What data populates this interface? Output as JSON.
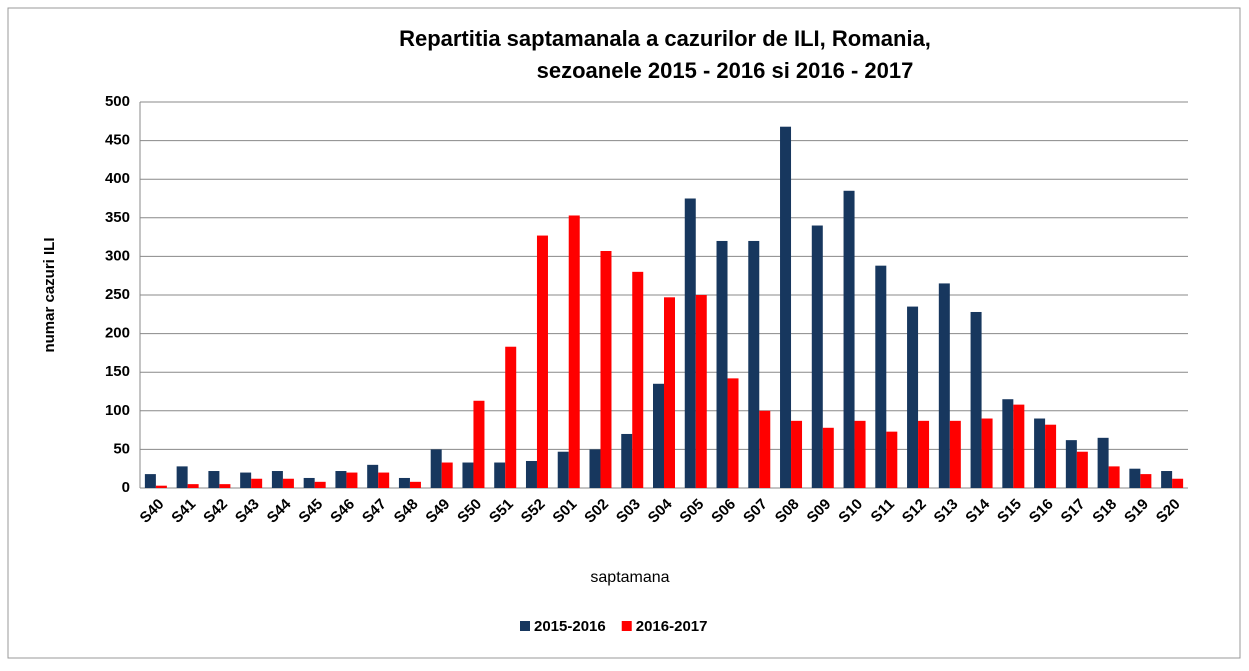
{
  "chart_data": {
    "type": "bar",
    "title": [
      "Repartitia saptamanala a cazurilor de ILI, Romania,",
      "sezoanele 2015 - 2016 si 2016 - 2017"
    ],
    "xlabel": "saptamana",
    "ylabel": "numar cazuri ILI",
    "categories": [
      "S40",
      "S41",
      "S42",
      "S43",
      "S44",
      "S45",
      "S46",
      "S47",
      "S48",
      "S49",
      "S50",
      "S51",
      "S52",
      "S01",
      "S02",
      "S03",
      "S04",
      "S05",
      "S06",
      "S07",
      "S08",
      "S09",
      "S10",
      "S11",
      "S12",
      "S13",
      "S14",
      "S15",
      "S16",
      "S17",
      "S18",
      "S19",
      "S20"
    ],
    "series": [
      {
        "name": "2015-2016",
        "color": "#17375e",
        "values": [
          18,
          28,
          22,
          20,
          22,
          13,
          22,
          30,
          13,
          50,
          33,
          33,
          35,
          47,
          50,
          70,
          135,
          375,
          320,
          320,
          468,
          340,
          385,
          288,
          235,
          265,
          228,
          115,
          90,
          62,
          65,
          25,
          22
        ]
      },
      {
        "name": "2016-2017",
        "color": "#ff0000",
        "values": [
          3,
          5,
          5,
          12,
          12,
          8,
          20,
          20,
          8,
          33,
          113,
          183,
          327,
          353,
          307,
          280,
          247,
          250,
          142,
          100,
          87,
          78,
          87,
          73,
          87,
          87,
          90,
          108,
          82,
          47,
          28,
          18,
          12
        ]
      }
    ],
    "ylim": [
      0,
      500
    ],
    "yticks": [
      0,
      50,
      100,
      150,
      200,
      250,
      300,
      350,
      400,
      450,
      500
    ],
    "grid": true,
    "legend": "bottom"
  }
}
